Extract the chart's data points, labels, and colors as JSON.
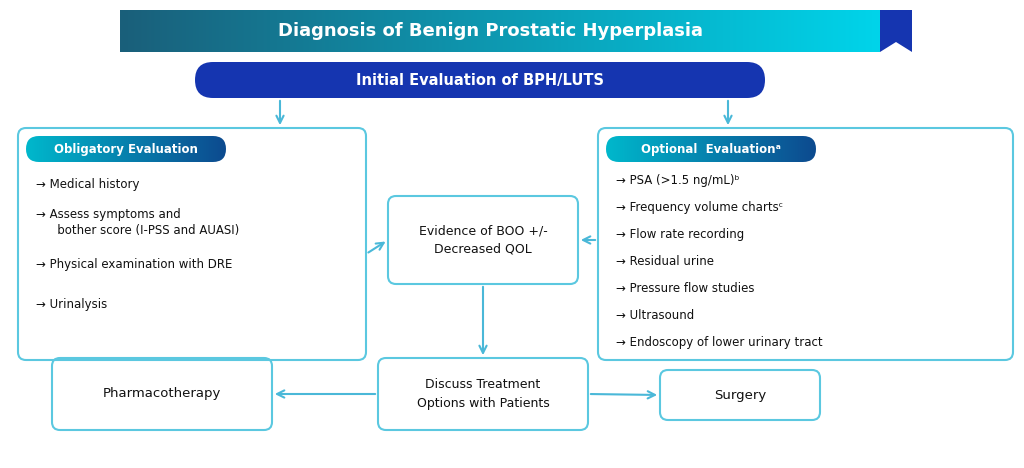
{
  "title": "Diagnosis of Benign Prostatic Hyperplasia",
  "subtitle": "Initial Evaluation of BPH/LUTS",
  "title_grad_left": "#1a5f7a",
  "title_grad_right": "#00d4ea",
  "subtitle_bg": "#1535b0",
  "pill_grad_left": "#0d4a8f",
  "pill_grad_right": "#00b8cc",
  "box_border_color": "#5bc8e0",
  "arrow_color": "#4ab8d8",
  "ribbon_color": "#1535b0",
  "bg_color": "#ffffff",
  "text_white": "#ffffff",
  "text_dark": "#111111",
  "obligatory_label": "Obligatory Evaluation",
  "obligatory_items_line1": "→ Medical history",
  "obligatory_items_line2": "→ Assess symptoms and",
  "obligatory_items_line2b": "   bother score (I-PSS and AUASI)",
  "obligatory_items_line3": "→ Physical examination with DRE",
  "obligatory_items_line4": "→ Urinalysis",
  "evidence_text_line1": "Evidence of BOO +/-",
  "evidence_text_line2": "Decreased QOL",
  "optional_label": "Optional  Evaluationᵃ",
  "optional_items": [
    "→ PSA (>1.5 ng/mL)ᵇ",
    "→ Frequency volume chartsᶜ",
    "→ Flow rate recording",
    "→ Residual urine",
    "→ Pressure flow studies",
    "→ Ultrasound",
    "→ Endoscopy of lower urinary tract"
  ],
  "discuss_text": "Discuss Treatment\nOptions with Patients",
  "pharma_text": "Pharmacotherapy",
  "surgery_text": "Surgery"
}
